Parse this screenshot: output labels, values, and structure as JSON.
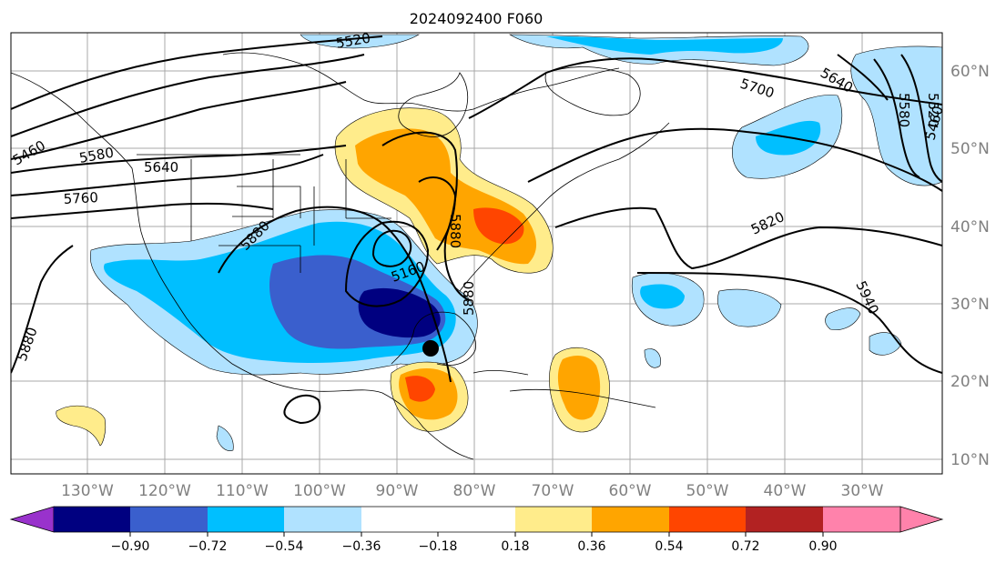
{
  "title": "2024092400 F060",
  "lon_labels": [
    "130°W",
    "120°W",
    "110°W",
    "100°W",
    "90°W",
    "80°W",
    "70°W",
    "60°W",
    "50°W",
    "40°W",
    "30°W"
  ],
  "lat_labels": [
    "60°N",
    "50°N",
    "40°N",
    "30°N",
    "20°N",
    "10°N"
  ],
  "contour_labels": [
    "5520",
    "5640",
    "5700",
    "5460",
    "5580",
    "5640",
    "5760",
    "5880",
    "5820",
    "5940",
    "5880",
    "5460",
    "5520",
    "5580",
    "5880",
    "5160",
    "5880"
  ],
  "colorbar": {
    "tick_labels": [
      "−0.90",
      "−0.72",
      "−0.54",
      "−0.36",
      "−0.18",
      "0.18",
      "0.36",
      "0.54",
      "0.72",
      "0.90"
    ],
    "colors": [
      "#9932CC",
      "#000080",
      "#3A5FCD",
      "#00BFFF",
      "#B0E2FF",
      "#FFFFFF",
      "#FFEC8B",
      "#FFA500",
      "#FF4500",
      "#B22222",
      "#FF82AB"
    ]
  },
  "marker": "storm-center",
  "colors": {
    "positive_light": "#FFEC8B",
    "positive_mid": "#FFA500",
    "positive_strong": "#FF4500",
    "negative_light": "#B0E2FF",
    "negative_mid": "#00BFFF",
    "negative_strong": "#3A5FCD",
    "negative_max": "#000080",
    "axis_label": "#808080"
  }
}
